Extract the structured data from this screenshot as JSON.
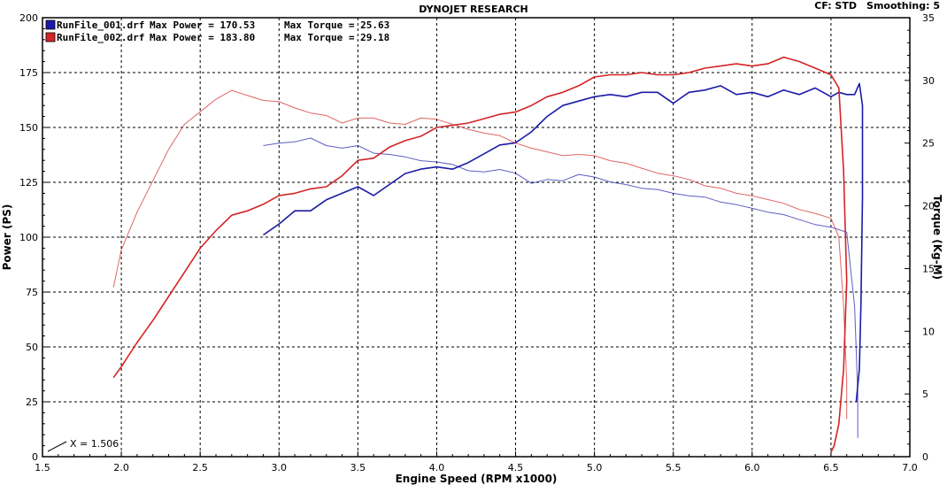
{
  "header": {
    "title": "DYNOJET RESEARCH",
    "cf_label": "CF: STD",
    "smoothing_label": "Smoothing: 5"
  },
  "legend": [
    {
      "file": "RunFile_001.drf",
      "max_power": "Max Power = 170.53",
      "max_torque": "Max Torque = 25.63",
      "color": "#1a1aa8"
    },
    {
      "file": "RunFile_002.drf",
      "max_power": "Max Power = 183.80",
      "max_torque": "Max Torque = 29.18",
      "color": "#d42424"
    }
  ],
  "cursor_readout": "X = 1.506",
  "chart_data": {
    "type": "line",
    "xlabel": "Engine Speed (RPM x1000)",
    "ylabel": "Power (PS)",
    "y2label": "Torque (Kg-M)",
    "xlim": [
      1.5,
      7.0
    ],
    "ylim": [
      0,
      200
    ],
    "y2lim": [
      0,
      35
    ],
    "xticks": [
      "1.5",
      "2.0",
      "2.5",
      "3.0",
      "3.5",
      "4.0",
      "4.5",
      "5.0",
      "5.5",
      "6.0",
      "6.5",
      "7.0"
    ],
    "yticks": [
      "0",
      "25",
      "50",
      "75",
      "100",
      "125",
      "150",
      "175",
      "200"
    ],
    "y2ticks": [
      "0",
      "5",
      "10",
      "15",
      "20",
      "25",
      "30",
      "35"
    ],
    "grid": true,
    "series": [
      {
        "name": "RunFile_001.drf",
        "measure": "power",
        "axis": "left",
        "color": "#1a1aa8",
        "x": [
          2.9,
          3.0,
          3.1,
          3.2,
          3.3,
          3.4,
          3.5,
          3.6,
          3.7,
          3.8,
          3.9,
          4.0,
          4.1,
          4.2,
          4.3,
          4.4,
          4.5,
          4.6,
          4.7,
          4.8,
          4.9,
          5.0,
          5.1,
          5.2,
          5.3,
          5.4,
          5.5,
          5.6,
          5.7,
          5.8,
          5.9,
          6.0,
          6.1,
          6.2,
          6.3,
          6.4,
          6.5,
          6.55,
          6.6,
          6.65,
          6.68,
          6.7,
          6.7,
          6.69,
          6.68,
          6.66
        ],
        "y": [
          101,
          106,
          112,
          112,
          117,
          120,
          123,
          119,
          124,
          129,
          131,
          132,
          131,
          134,
          138,
          142,
          143,
          148,
          155,
          160,
          162,
          164,
          165,
          164,
          166,
          166,
          161,
          166,
          167,
          169,
          165,
          166,
          164,
          167,
          165,
          168,
          164,
          166,
          165,
          165,
          170,
          160,
          118,
          70,
          40,
          25
        ]
      },
      {
        "name": "RunFile_001.drf",
        "measure": "torque",
        "axis": "right",
        "color": "#1a1aa8",
        "x": [
          2.9,
          3.0,
          3.1,
          3.2,
          3.3,
          3.4,
          3.5,
          3.6,
          3.7,
          3.8,
          3.9,
          4.0,
          4.1,
          4.2,
          4.3,
          4.4,
          4.5,
          4.6,
          4.7,
          4.8,
          4.9,
          5.0,
          5.1,
          5.2,
          5.3,
          5.4,
          5.5,
          5.6,
          5.7,
          5.8,
          5.9,
          6.0,
          6.1,
          6.2,
          6.3,
          6.4,
          6.5,
          6.55,
          6.6,
          6.65,
          6.67,
          6.67
        ],
        "y": [
          24.8,
          25.0,
          25.1,
          25.4,
          24.8,
          24.6,
          24.8,
          24.2,
          24.1,
          23.9,
          23.6,
          23.5,
          23.3,
          22.8,
          22.7,
          22.9,
          22.6,
          21.8,
          22.1,
          22.0,
          22.5,
          22.3,
          21.9,
          21.7,
          21.4,
          21.3,
          21.0,
          20.8,
          20.7,
          20.3,
          20.1,
          19.8,
          19.5,
          19.3,
          18.9,
          18.5,
          18.3,
          18.1,
          17.9,
          12.0,
          5.0,
          1.5
        ]
      },
      {
        "name": "RunFile_002.drf",
        "measure": "power",
        "axis": "left",
        "color": "#d42424",
        "x": [
          1.95,
          2.0,
          2.1,
          2.2,
          2.3,
          2.4,
          2.5,
          2.6,
          2.7,
          2.8,
          2.9,
          3.0,
          3.1,
          3.2,
          3.3,
          3.4,
          3.5,
          3.6,
          3.7,
          3.8,
          3.9,
          4.0,
          4.1,
          4.2,
          4.3,
          4.4,
          4.5,
          4.6,
          4.7,
          4.8,
          4.9,
          5.0,
          5.1,
          5.2,
          5.3,
          5.4,
          5.5,
          5.6,
          5.7,
          5.8,
          5.9,
          6.0,
          6.1,
          6.2,
          6.3,
          6.4,
          6.5,
          6.55,
          6.58,
          6.6,
          6.58,
          6.55,
          6.52,
          6.5
        ],
        "y": [
          36,
          41,
          52,
          62,
          73,
          84,
          95,
          103,
          110,
          112,
          115,
          119,
          120,
          122,
          123,
          128,
          135,
          136,
          141,
          144,
          146,
          150,
          151,
          152,
          154,
          156,
          157,
          160,
          164,
          166,
          169,
          173,
          174,
          174,
          175,
          174,
          174,
          175,
          177,
          178,
          179,
          178,
          179,
          182,
          180,
          177,
          174,
          168,
          130,
          80,
          40,
          15,
          5,
          2
        ]
      },
      {
        "name": "RunFile_002.drf",
        "measure": "torque",
        "axis": "right",
        "color": "#d42424",
        "x": [
          1.95,
          2.0,
          2.1,
          2.2,
          2.3,
          2.4,
          2.5,
          2.6,
          2.7,
          2.8,
          2.9,
          3.0,
          3.1,
          3.2,
          3.3,
          3.4,
          3.5,
          3.6,
          3.7,
          3.8,
          3.9,
          4.0,
          4.1,
          4.2,
          4.3,
          4.4,
          4.5,
          4.6,
          4.7,
          4.8,
          4.9,
          5.0,
          5.1,
          5.2,
          5.3,
          5.4,
          5.5,
          5.6,
          5.7,
          5.8,
          5.9,
          6.0,
          6.1,
          6.2,
          6.3,
          6.4,
          6.5,
          6.55,
          6.58,
          6.6,
          6.6
        ],
        "y": [
          13.5,
          16.5,
          19.5,
          22.0,
          24.5,
          26.5,
          27.5,
          28.5,
          29.2,
          28.8,
          28.4,
          28.3,
          27.8,
          27.4,
          27.2,
          26.6,
          27.0,
          27.0,
          26.6,
          26.5,
          27.0,
          26.9,
          26.5,
          26.1,
          25.8,
          25.6,
          25.0,
          24.6,
          24.3,
          24.0,
          24.1,
          24.0,
          23.6,
          23.4,
          23.0,
          22.6,
          22.4,
          22.1,
          21.6,
          21.4,
          21.0,
          20.8,
          20.5,
          20.2,
          19.7,
          19.4,
          19.0,
          17.5,
          12.0,
          6.0,
          3.0
        ]
      }
    ]
  }
}
